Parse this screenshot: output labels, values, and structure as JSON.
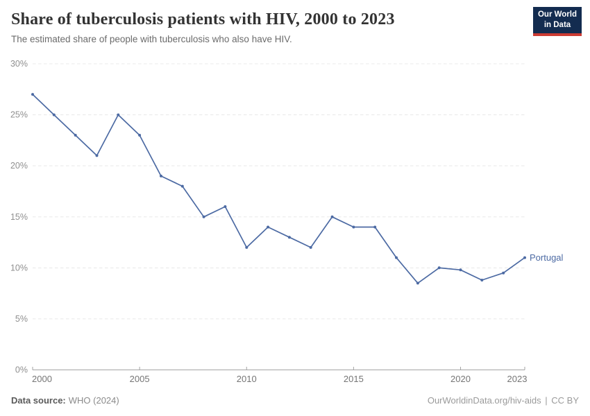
{
  "header": {
    "title": "Share of tuberculosis patients with HIV, 2000 to 2023",
    "subtitle": "The estimated share of people with tuberculosis who also have HIV.",
    "logo": {
      "line1": "Our World",
      "line2": "in Data",
      "background": "#132c50",
      "accent": "#cc3b33"
    }
  },
  "chart_data": {
    "type": "line",
    "title": "Share of tuberculosis patients with HIV, 2000 to 2023",
    "xlabel": "",
    "ylabel": "",
    "xlim": [
      2000,
      2023
    ],
    "ylim": [
      0,
      30
    ],
    "grid": "horizontal-dashed",
    "legend_position": "end-of-line-label",
    "x_ticks": [
      {
        "value": 2000,
        "label": "2000"
      },
      {
        "value": 2005,
        "label": "2005"
      },
      {
        "value": 2010,
        "label": "2010"
      },
      {
        "value": 2015,
        "label": "2015"
      },
      {
        "value": 2020,
        "label": "2020"
      },
      {
        "value": 2023,
        "label": "2023"
      }
    ],
    "y_ticks": [
      {
        "value": 0,
        "label": "0%"
      },
      {
        "value": 5,
        "label": "5%"
      },
      {
        "value": 10,
        "label": "10%"
      },
      {
        "value": 15,
        "label": "15%"
      },
      {
        "value": 20,
        "label": "20%"
      },
      {
        "value": 25,
        "label": "25%"
      },
      {
        "value": 30,
        "label": "30%"
      }
    ],
    "series": [
      {
        "name": "Portugal",
        "color": "#4c6aa3",
        "x": [
          2000,
          2001,
          2002,
          2003,
          2004,
          2005,
          2006,
          2007,
          2008,
          2009,
          2010,
          2011,
          2012,
          2013,
          2014,
          2015,
          2016,
          2017,
          2018,
          2019,
          2020,
          2021,
          2022,
          2023
        ],
        "values": [
          27,
          25,
          23,
          21,
          25,
          23,
          19,
          18,
          15,
          16,
          12,
          14,
          13,
          12,
          15,
          14,
          14,
          11,
          8.5,
          10,
          9.8,
          8.8,
          9.5,
          11
        ]
      }
    ]
  },
  "footer": {
    "source_label": "Data source:",
    "source_value": "WHO (2024)",
    "url": "OurWorldinData.org/hiv-aids",
    "separator": "|",
    "license": "CC BY"
  }
}
